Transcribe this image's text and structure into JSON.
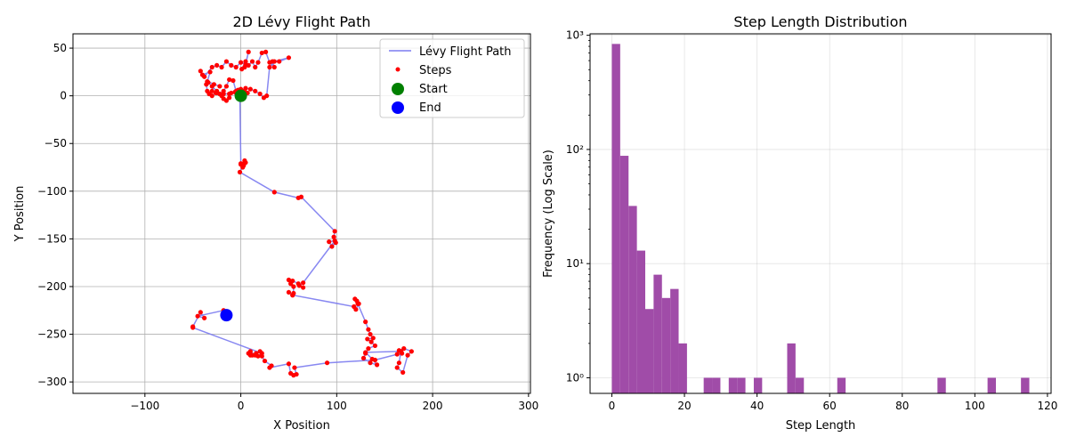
{
  "chart_data": [
    {
      "type": "line",
      "title": "2D Lévy Flight Path",
      "xlabel": "X Position",
      "ylabel": "Y Position",
      "xlim": [
        -175,
        302
      ],
      "ylim": [
        -312,
        65
      ],
      "xticks": [
        -100,
        0,
        100,
        200,
        300
      ],
      "yticks": [
        50,
        0,
        -50,
        -100,
        -150,
        -200,
        -250,
        -300
      ],
      "grid": true,
      "legend": {
        "placement": "top-right",
        "entries": [
          "Lévy Flight Path",
          "Steps",
          "Start",
          "End"
        ]
      },
      "colors": {
        "path": "#7b7bf0",
        "steps": "#ff0000",
        "start": "#008000",
        "end": "#0000ff"
      },
      "series": [
        {
          "name": "Lévy Flight Path",
          "x": [
            0,
            3,
            -5,
            -12,
            -18,
            -25,
            -30,
            -28,
            -22,
            -35,
            -32,
            -40,
            -42,
            -38,
            -30,
            -25,
            -20,
            -15,
            -10,
            -5,
            0,
            5,
            8,
            4,
            1,
            5,
            8,
            12,
            15,
            18,
            22,
            26,
            30,
            35,
            33,
            40,
            50,
            35,
            30,
            27,
            24,
            20,
            15,
            10,
            5,
            2,
            -2,
            -5,
            -8,
            -12,
            -15,
            -18,
            -22,
            -26,
            -30,
            -33,
            -35,
            -36,
            -34,
            -30,
            -25,
            -20,
            -18,
            -15,
            -12,
            -10,
            -6,
            -3,
            0,
            4,
            7,
            3,
            -1,
            0,
            3,
            5,
            4,
            0,
            2,
            4,
            -1,
            35,
            60,
            63,
            98,
            97,
            99,
            95,
            92,
            98,
            65,
            61,
            65,
            60,
            54,
            50,
            52,
            55,
            55,
            54,
            50,
            54,
            118,
            120,
            123,
            121,
            119,
            122,
            130,
            133,
            135,
            138,
            132,
            136,
            140,
            133,
            130,
            128,
            135,
            142,
            137,
            130,
            167,
            165,
            163,
            169,
            174,
            178,
            170,
            165,
            168,
            163,
            140,
            90,
            56,
            58,
            55,
            52,
            50,
            30,
            32,
            25,
            22,
            20,
            16,
            12,
            10,
            8,
            10,
            15,
            18,
            22,
            -50,
            -50,
            -42,
            -38,
            -45,
            -18,
            -15
          ],
          "y": [
            0,
            5,
            3,
            2,
            2,
            3,
            5,
            12,
            10,
            15,
            25,
            22,
            26,
            20,
            30,
            32,
            30,
            36,
            32,
            30,
            35,
            33,
            46,
            30,
            28,
            36,
            32,
            36,
            30,
            35,
            45,
            46,
            35,
            30,
            36,
            36,
            40,
            36,
            30,
            0,
            -2,
            2,
            5,
            7,
            8,
            3,
            6,
            5,
            16,
            17,
            10,
            5,
            2,
            3,
            0,
            2,
            5,
            12,
            14,
            10,
            5,
            0,
            -3,
            -5,
            -2,
            3,
            4,
            6,
            7,
            5,
            3,
            2,
            0,
            -71,
            -73,
            -70,
            -68,
            -72,
            -75,
            -70,
            -80,
            -101,
            -107,
            -106,
            -142,
            -148,
            -154,
            -158,
            -153,
            -152,
            -196,
            -199,
            -201,
            -197,
            -194,
            -193,
            -197,
            -200,
            -207,
            -209,
            -206,
            -209,
            -221,
            -224,
            -218,
            -215,
            -213,
            -218,
            -237,
            -245,
            -250,
            -254,
            -255,
            -258,
            -262,
            -265,
            -270,
            -275,
            -280,
            -282,
            -276,
            -269,
            -268,
            -280,
            -285,
            -290,
            -272,
            -268,
            -265,
            -267,
            -270,
            -271,
            -277,
            -280,
            -285,
            -292,
            -293,
            -291,
            -281,
            -285,
            -283,
            -278,
            -273,
            -268,
            -270,
            -272,
            -272,
            -270,
            -268,
            -272,
            -273,
            -270,
            -243,
            -242,
            -227,
            -233,
            -231,
            -225,
            -230
          ]
        }
      ],
      "start": {
        "x": 0,
        "y": 0
      },
      "end": {
        "x": -15,
        "y": -230
      }
    },
    {
      "type": "bar",
      "title": "Step Length Distribution",
      "xlabel": "Step Length",
      "ylabel": "Frequency (Log Scale)",
      "xlim": [
        -6,
        121
      ],
      "ylim": [
        0.73,
        1030
      ],
      "yscale": "log",
      "xticks": [
        0,
        20,
        40,
        60,
        80,
        100,
        120
      ],
      "yticks": [
        1,
        10,
        100,
        1000
      ],
      "ytick_labels": [
        "10⁰",
        "10¹",
        "10²",
        "10³"
      ],
      "grid": true,
      "bar_color": "#a04ca8",
      "bin_width": 2.3,
      "bins": [
        {
          "start": 0.0,
          "value": 840
        },
        {
          "start": 2.3,
          "value": 88
        },
        {
          "start": 4.6,
          "value": 32
        },
        {
          "start": 6.9,
          "value": 13
        },
        {
          "start": 9.2,
          "value": 4
        },
        {
          "start": 11.5,
          "value": 8
        },
        {
          "start": 13.8,
          "value": 5
        },
        {
          "start": 16.1,
          "value": 6
        },
        {
          "start": 18.4,
          "value": 2
        },
        {
          "start": 25.3,
          "value": 1
        },
        {
          "start": 27.6,
          "value": 1
        },
        {
          "start": 32.2,
          "value": 1
        },
        {
          "start": 34.5,
          "value": 1
        },
        {
          "start": 39.1,
          "value": 1
        },
        {
          "start": 48.3,
          "value": 2
        },
        {
          "start": 50.6,
          "value": 1
        },
        {
          "start": 62.1,
          "value": 1
        },
        {
          "start": 89.7,
          "value": 1
        },
        {
          "start": 103.5,
          "value": 1
        },
        {
          "start": 112.7,
          "value": 1
        }
      ]
    }
  ]
}
